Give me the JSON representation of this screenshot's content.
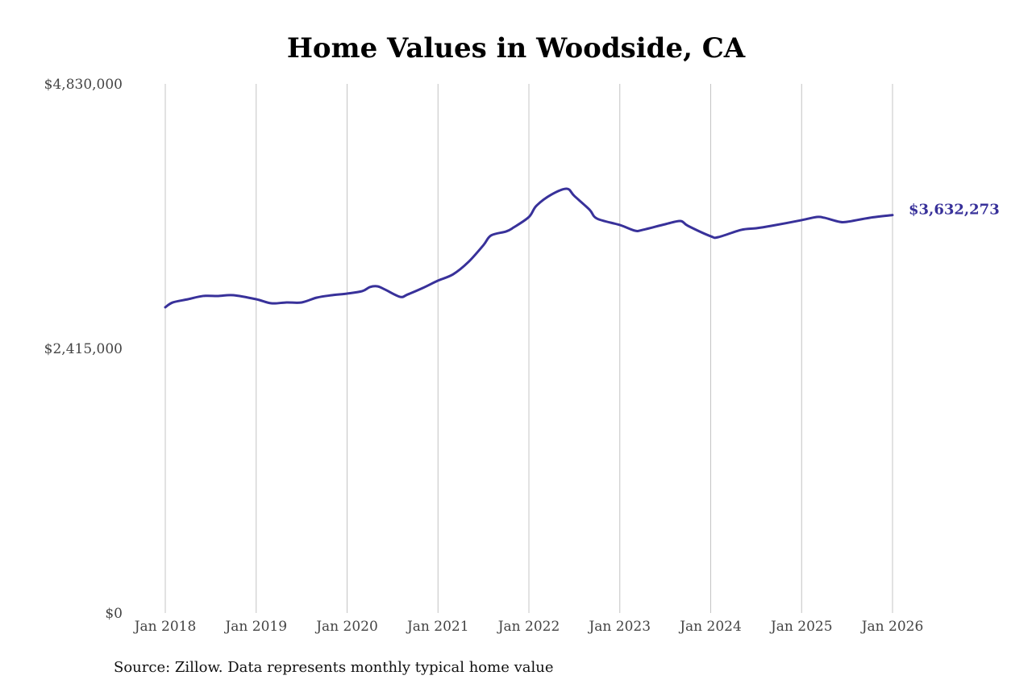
{
  "chart_data": {
    "type": "line",
    "title": "Home Values in Woodside, CA",
    "xlabel": "",
    "ylabel": "",
    "ylim": [
      0,
      4830000
    ],
    "xlim": [
      "2018-01",
      "2026-01"
    ],
    "y_ticks": [
      "$0",
      "$2,415,000",
      "$4,830,000"
    ],
    "y_tick_values": [
      0,
      2415000,
      4830000
    ],
    "x_ticks": [
      "Jan 2018",
      "Jan 2019",
      "Jan 2020",
      "Jan 2021",
      "Jan 2022",
      "Jan 2023",
      "Jan 2024",
      "Jan 2025",
      "Jan 2026"
    ],
    "x_tick_dates": [
      "2018-01",
      "2019-01",
      "2020-01",
      "2021-01",
      "2022-01",
      "2023-01",
      "2024-01",
      "2025-01",
      "2026-01"
    ],
    "grid": "vertical",
    "line_color": "#38319a",
    "end_label": "$3,632,273",
    "source": "Source: Zillow. Data represents monthly typical home value",
    "series": [
      {
        "points": [
          [
            "2018-01",
            2791000
          ],
          [
            "2018-02",
            2835000
          ],
          [
            "2018-04",
            2864000
          ],
          [
            "2018-06",
            2894000
          ],
          [
            "2018-08",
            2894000
          ],
          [
            "2018-10",
            2901000
          ],
          [
            "2019-01",
            2864000
          ],
          [
            "2019-03",
            2827000
          ],
          [
            "2019-05",
            2835000
          ],
          [
            "2019-07",
            2835000
          ],
          [
            "2019-09",
            2879000
          ],
          [
            "2019-11",
            2901000
          ],
          [
            "2020-01",
            2916000
          ],
          [
            "2020-03",
            2938000
          ],
          [
            "2020-04",
            2975000
          ],
          [
            "2020-05",
            2982000
          ],
          [
            "2020-06",
            2953000
          ],
          [
            "2020-08",
            2886000
          ],
          [
            "2020-09",
            2908000
          ],
          [
            "2020-11",
            2967000
          ],
          [
            "2021-01",
            3034000
          ],
          [
            "2021-03",
            3092000
          ],
          [
            "2021-05",
            3203000
          ],
          [
            "2021-07",
            3358000
          ],
          [
            "2021-08",
            3446000
          ],
          [
            "2021-10",
            3483000
          ],
          [
            "2021-11",
            3520000
          ],
          [
            "2022-01",
            3615000
          ],
          [
            "2022-02",
            3718000
          ],
          [
            "2022-04",
            3821000
          ],
          [
            "2022-06",
            3873000
          ],
          [
            "2022-07",
            3807000
          ],
          [
            "2022-09",
            3682000
          ],
          [
            "2022-10",
            3600000
          ],
          [
            "2023-01",
            3542000
          ],
          [
            "2023-03",
            3490000
          ],
          [
            "2023-04",
            3497000
          ],
          [
            "2023-07",
            3549000
          ],
          [
            "2023-09",
            3578000
          ],
          [
            "2023-10",
            3534000
          ],
          [
            "2024-01",
            3439000
          ],
          [
            "2024-02",
            3431000
          ],
          [
            "2024-05",
            3497000
          ],
          [
            "2024-07",
            3512000
          ],
          [
            "2024-09",
            3534000
          ],
          [
            "2025-01",
            3586000
          ],
          [
            "2025-03",
            3615000
          ],
          [
            "2025-04",
            3608000
          ],
          [
            "2025-06",
            3571000
          ],
          [
            "2025-07",
            3571000
          ],
          [
            "2025-10",
            3608000
          ],
          [
            "2026-01",
            3632273
          ]
        ]
      }
    ]
  }
}
